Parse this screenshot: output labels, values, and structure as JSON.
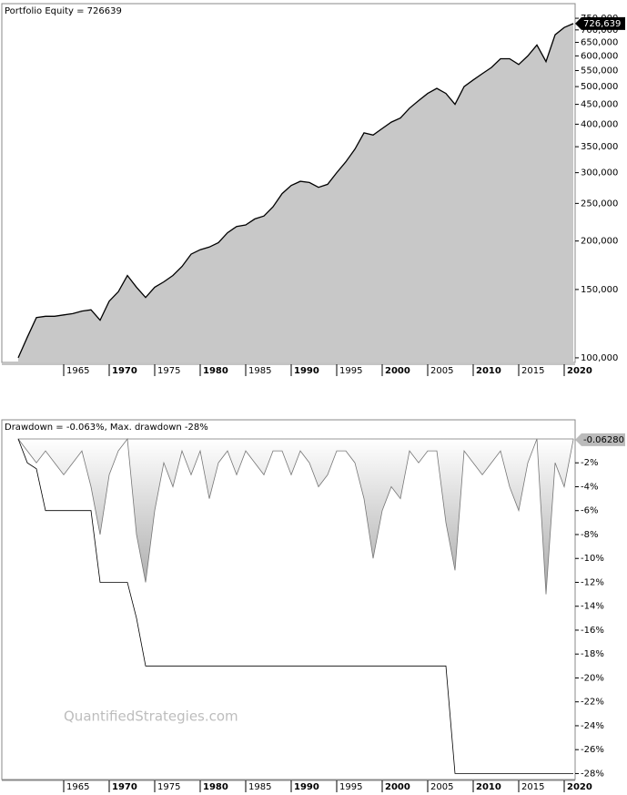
{
  "chart_data": [
    {
      "type": "area",
      "title": "Portfolio Equity = 726639",
      "log_scale": true,
      "color": "#c8c8c8",
      "line_color": "#000000",
      "x": [
        1960,
        1961,
        1962,
        1963,
        1964,
        1965,
        1966,
        1967,
        1968,
        1969,
        1970,
        1971,
        1972,
        1973,
        1974,
        1975,
        1976,
        1977,
        1978,
        1979,
        1980,
        1981,
        1982,
        1983,
        1984,
        1985,
        1986,
        1987,
        1988,
        1989,
        1990,
        1991,
        1992,
        1993,
        1994,
        1995,
        1996,
        1997,
        1998,
        1999,
        2000,
        2001,
        2002,
        2003,
        2004,
        2005,
        2006,
        2007,
        2008,
        2009,
        2010,
        2011,
        2012,
        2013,
        2014,
        2015,
        2016,
        2017,
        2018,
        2019,
        2020,
        2021
      ],
      "series": [
        {
          "color": "#c8c8c8",
          "values": [
            100000,
            113000,
            127000,
            128000,
            128000,
            129000,
            130000,
            132000,
            133000,
            125000,
            140000,
            148000,
            163000,
            152000,
            143000,
            152000,
            157000,
            163000,
            172000,
            185000,
            190000,
            193000,
            198000,
            210000,
            218000,
            220000,
            228000,
            232000,
            245000,
            265000,
            278000,
            285000,
            283000,
            275000,
            280000,
            300000,
            320000,
            345000,
            380000,
            375000,
            390000,
            405000,
            415000,
            440000,
            460000,
            480000,
            495000,
            480000,
            450000,
            500000,
            520000,
            540000,
            560000,
            590000,
            590000,
            570000,
            600000,
            640000,
            580000,
            680000,
            710000,
            726639
          ]
        }
      ],
      "last_value_label": "726,639",
      "xlim": [
        1958.2,
        2021.2
      ],
      "xticks": [
        1965,
        1970,
        1975,
        1980,
        1985,
        1990,
        1995,
        2000,
        2005,
        2010,
        2015,
        2020
      ],
      "ylim": [
        97300,
        818000
      ],
      "yticks": [
        {
          "value": 100000,
          "label": "100,000"
        },
        {
          "value": 150000,
          "label": "150,000"
        },
        {
          "value": 200000,
          "label": "200,000"
        },
        {
          "value": 250000,
          "label": "250,000"
        },
        {
          "value": 300000,
          "label": "300,000"
        },
        {
          "value": 350000,
          "label": "350,000"
        },
        {
          "value": 400000,
          "label": "400,000"
        },
        {
          "value": 450000,
          "label": "450,000"
        },
        {
          "value": 500000,
          "label": "500,000"
        },
        {
          "value": 550000,
          "label": "550,000"
        },
        {
          "value": 600000,
          "label": "600,000"
        },
        {
          "value": 650000,
          "label": "650,000"
        },
        {
          "value": 700000,
          "label": "700,000"
        },
        {
          "value": 750000,
          "label": "750,000"
        }
      ]
    },
    {
      "type": "drawdown",
      "title": "Drawdown = -0.063%, Max. drawdown -28%",
      "watermark": "QuantifiedStrategies.com",
      "log_scale": false,
      "x": [
        1960,
        1961,
        1962,
        1963,
        1964,
        1965,
        1966,
        1967,
        1968,
        1969,
        1970,
        1971,
        1972,
        1973,
        1974,
        1975,
        1976,
        1977,
        1978,
        1979,
        1980,
        1981,
        1982,
        1983,
        1984,
        1985,
        1986,
        1987,
        1988,
        1989,
        1990,
        1991,
        1992,
        1993,
        1994,
        1995,
        1996,
        1997,
        1998,
        1999,
        2000,
        2001,
        2002,
        2003,
        2004,
        2005,
        2006,
        2007,
        2008,
        2009,
        2010,
        2011,
        2012,
        2013,
        2014,
        2015,
        2016,
        2017,
        2018,
        2019,
        2020,
        2021
      ],
      "series": [
        {
          "color": "#b4b4b4",
          "values": [
            0,
            -1,
            -2,
            -1,
            -2,
            -3,
            -2,
            -1,
            -4,
            -8,
            -3,
            -1,
            0,
            -8,
            -12,
            -6,
            -2,
            -4,
            -1,
            -3,
            -1,
            -5,
            -2,
            -1,
            -3,
            -1,
            -2,
            -3,
            -1,
            -1,
            -3,
            -1,
            -2,
            -4,
            -3,
            -1,
            -1,
            -2,
            -5,
            -10,
            -6,
            -4,
            -5,
            -1,
            -2,
            -1,
            -1,
            -7,
            -11,
            -1,
            -2,
            -3,
            -2,
            -1,
            -4,
            -6,
            -2,
            0,
            -13,
            -2,
            -4,
            -0.0628
          ]
        },
        {
          "color": "#000000",
          "values": [
            0,
            -2,
            -2.5,
            -6,
            -6,
            -6,
            -6,
            -6,
            -6,
            -12,
            -12,
            -12,
            -12,
            -15,
            -19,
            -19,
            -19,
            -19,
            -19,
            -19,
            -19,
            -19,
            -19,
            -19,
            -19,
            -19,
            -19,
            -19,
            -19,
            -19,
            -19,
            -19,
            -19,
            -19,
            -19,
            -19,
            -19,
            -19,
            -19,
            -19,
            -19,
            -19,
            -19,
            -19,
            -19,
            -19,
            -19,
            -19,
            -28,
            -28,
            -28,
            -28,
            -28,
            -28,
            -28,
            -28,
            -28,
            -28,
            -28,
            -28,
            -28,
            -28
          ]
        }
      ],
      "last_value_label": "-0.06280",
      "xlim": [
        1958.2,
        2021.2
      ],
      "xticks": [
        1965,
        1970,
        1975,
        1980,
        1985,
        1990,
        1995,
        2000,
        2005,
        2010,
        2015,
        2020
      ],
      "ylim": [
        -28.5,
        1.6
      ],
      "yticks": [
        {
          "value": -2,
          "label": "-2%"
        },
        {
          "value": -4,
          "label": "-4%"
        },
        {
          "value": -6,
          "label": "-6%"
        },
        {
          "value": -8,
          "label": "-8%"
        },
        {
          "value": -10,
          "label": "-10%"
        },
        {
          "value": -12,
          "label": "-12%"
        },
        {
          "value": -14,
          "label": "-14%"
        },
        {
          "value": -16,
          "label": "-16%"
        },
        {
          "value": -18,
          "label": "-18%"
        },
        {
          "value": -20,
          "label": "-20%"
        },
        {
          "value": -22,
          "label": "-22%"
        },
        {
          "value": -24,
          "label": "-24%"
        },
        {
          "value": -26,
          "label": "-26%"
        },
        {
          "value": -28,
          "label": "-28%"
        }
      ]
    }
  ]
}
